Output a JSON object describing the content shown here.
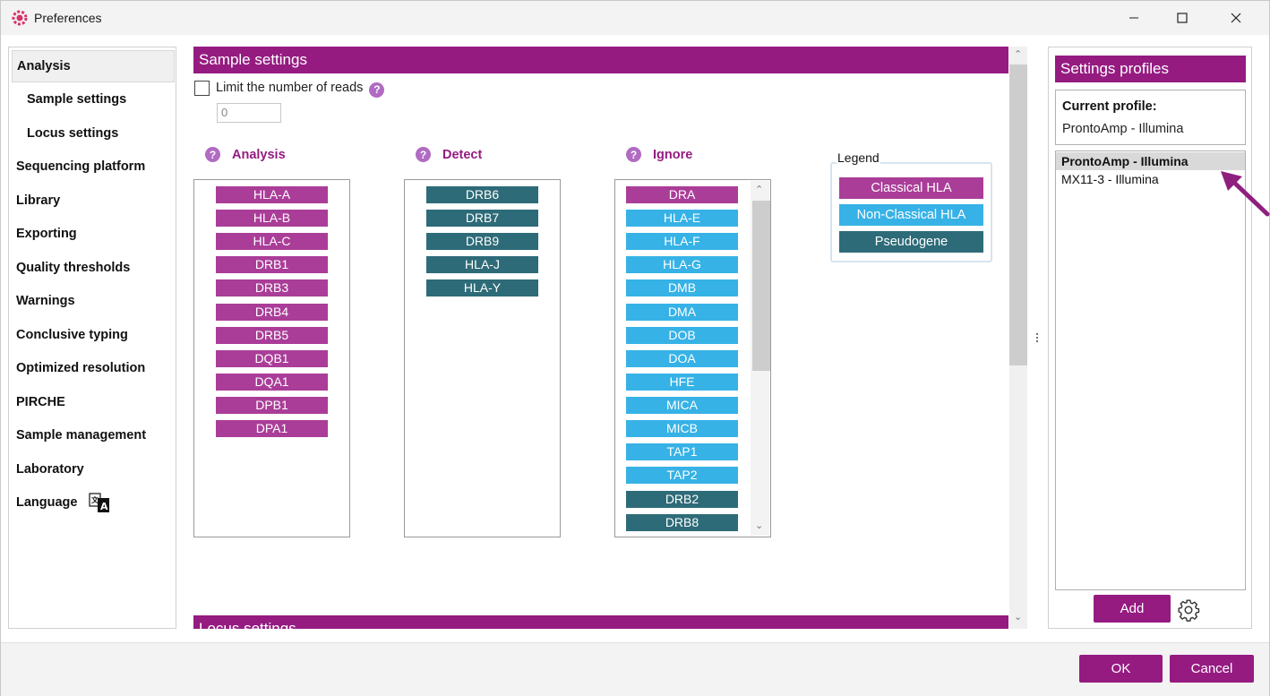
{
  "window": {
    "title": "Preferences"
  },
  "nav": {
    "items": [
      {
        "label": "Analysis",
        "selected": true,
        "sub": false
      },
      {
        "label": "Sample settings",
        "sub": true
      },
      {
        "label": "Locus settings",
        "sub": true
      },
      {
        "label": "Sequencing platform"
      },
      {
        "label": "Library"
      },
      {
        "label": "Exporting"
      },
      {
        "label": "Quality thresholds"
      },
      {
        "label": "Warnings"
      },
      {
        "label": "Conclusive typing"
      },
      {
        "label": "Optimized resolution"
      },
      {
        "label": "PIRCHE"
      },
      {
        "label": "Sample management"
      },
      {
        "label": "Laboratory"
      },
      {
        "label": "Language",
        "icon": "translate-icon"
      }
    ]
  },
  "sample_settings": {
    "title": "Sample settings",
    "limit_reads_label": "Limit the number of reads",
    "limit_reads_checked": false,
    "reads_value": "0",
    "help_symbol": "?"
  },
  "columns": {
    "analysis": {
      "title": "Analysis",
      "items": [
        {
          "label": "HLA-A",
          "type": "classical"
        },
        {
          "label": "HLA-B",
          "type": "classical"
        },
        {
          "label": "HLA-C",
          "type": "classical"
        },
        {
          "label": "DRB1",
          "type": "classical"
        },
        {
          "label": "DRB3",
          "type": "classical"
        },
        {
          "label": "DRB4",
          "type": "classical"
        },
        {
          "label": "DRB5",
          "type": "classical"
        },
        {
          "label": "DQB1",
          "type": "classical"
        },
        {
          "label": "DQA1",
          "type": "classical"
        },
        {
          "label": "DPB1",
          "type": "classical"
        },
        {
          "label": "DPA1",
          "type": "classical"
        }
      ]
    },
    "detect": {
      "title": "Detect",
      "items": [
        {
          "label": "DRB6",
          "type": "pseudo"
        },
        {
          "label": "DRB7",
          "type": "pseudo"
        },
        {
          "label": "DRB9",
          "type": "pseudo"
        },
        {
          "label": "HLA-J",
          "type": "pseudo"
        },
        {
          "label": "HLA-Y",
          "type": "pseudo"
        }
      ]
    },
    "ignore": {
      "title": "Ignore",
      "items": [
        {
          "label": "DRA",
          "type": "classical"
        },
        {
          "label": "HLA-E",
          "type": "nonclassical"
        },
        {
          "label": "HLA-F",
          "type": "nonclassical"
        },
        {
          "label": "HLA-G",
          "type": "nonclassical"
        },
        {
          "label": "DMB",
          "type": "nonclassical"
        },
        {
          "label": "DMA",
          "type": "nonclassical"
        },
        {
          "label": "DOB",
          "type": "nonclassical"
        },
        {
          "label": "DOA",
          "type": "nonclassical"
        },
        {
          "label": "HFE",
          "type": "nonclassical"
        },
        {
          "label": "MICA",
          "type": "nonclassical"
        },
        {
          "label": "MICB",
          "type": "nonclassical"
        },
        {
          "label": "TAP1",
          "type": "nonclassical"
        },
        {
          "label": "TAP2",
          "type": "nonclassical"
        },
        {
          "label": "DRB2",
          "type": "pseudo"
        },
        {
          "label": "DRB8",
          "type": "pseudo"
        }
      ]
    }
  },
  "legend": {
    "title": "Legend",
    "items": [
      {
        "label": "Classical HLA",
        "type": "classical"
      },
      {
        "label": "Non-Classical HLA",
        "type": "nonclassical"
      },
      {
        "label": "Pseudogene",
        "type": "pseudo"
      }
    ]
  },
  "locus_settings": {
    "title": "Locus settings"
  },
  "profiles": {
    "title": "Settings profiles",
    "current_label": "Current profile:",
    "current_value": "ProntoAmp - Illumina",
    "items": [
      {
        "label": "ProntoAmp - Illumina",
        "selected": true
      },
      {
        "label": "MX11-3 - Illumina",
        "selected": false
      }
    ],
    "add_label": "Add"
  },
  "footer": {
    "ok_label": "OK",
    "cancel_label": "Cancel"
  },
  "colors": {
    "brand": "#951b81",
    "classical": "#aa3d98",
    "nonclassical": "#36b2e6",
    "pseudogene": "#2e6b78"
  }
}
